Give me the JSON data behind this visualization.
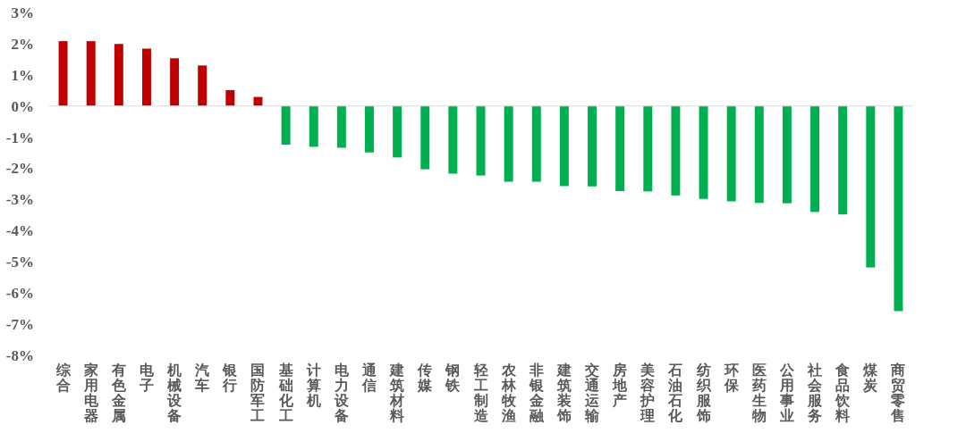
{
  "chart_data": {
    "type": "bar",
    "categories": [
      "综合",
      "家用电器",
      "有色金属",
      "电子",
      "机械设备",
      "汽车",
      "银行",
      "国防军工",
      "基础化工",
      "计算机",
      "电力设备",
      "通信",
      "建筑材料",
      "传媒",
      "钢铁",
      "轻工制造",
      "农林牧渔",
      "非银金融",
      "建筑装饰",
      "交通运输",
      "房地产",
      "美容护理",
      "石油石化",
      "纺织服饰",
      "环保",
      "医药生物",
      "公用事业",
      "社会服务",
      "食品饮料",
      "煤炭",
      "商贸零售"
    ],
    "values": [
      2.08,
      2.08,
      1.99,
      1.84,
      1.53,
      1.3,
      0.51,
      0.29,
      -1.24,
      -1.31,
      -1.34,
      -1.49,
      -1.65,
      -2.03,
      -2.17,
      -2.23,
      -2.43,
      -2.43,
      -2.57,
      -2.58,
      -2.73,
      -2.74,
      -2.87,
      -2.98,
      -3.06,
      -3.11,
      -3.12,
      -3.4,
      -3.48,
      -5.18,
      -6.58
    ],
    "colors": [
      "#c00000",
      "#c00000",
      "#c00000",
      "#c00000",
      "#c00000",
      "#c00000",
      "#c00000",
      "#c00000",
      "#00b050",
      "#00b050",
      "#00b050",
      "#00b050",
      "#00b050",
      "#00b050",
      "#00b050",
      "#00b050",
      "#00b050",
      "#00b050",
      "#00b050",
      "#00b050",
      "#00b050",
      "#00b050",
      "#00b050",
      "#00b050",
      "#00b050",
      "#00b050",
      "#00b050",
      "#00b050",
      "#00b050",
      "#00b050",
      "#00b050"
    ],
    "ylim": [
      -8,
      3
    ],
    "yticks": [
      {
        "value": 3,
        "label": "3%"
      },
      {
        "value": 2,
        "label": "2%"
      },
      {
        "value": 1,
        "label": "1%"
      },
      {
        "value": 0,
        "label": "0%"
      },
      {
        "value": -1,
        "label": "-1%"
      },
      {
        "value": -2,
        "label": "-2%"
      },
      {
        "value": -3,
        "label": "-3%"
      },
      {
        "value": -4,
        "label": "-4%"
      },
      {
        "value": -5,
        "label": "-5%"
      },
      {
        "value": -6,
        "label": "-6%"
      },
      {
        "value": -7,
        "label": "-7%"
      },
      {
        "value": -8,
        "label": "-8%"
      }
    ]
  }
}
